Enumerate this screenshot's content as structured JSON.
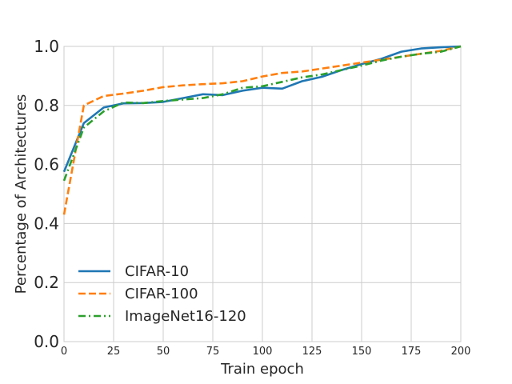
{
  "chart_data": {
    "type": "line",
    "title": "",
    "xlabel": "Train epoch",
    "ylabel": "Percentage of Architectures",
    "xlim": [
      0,
      200
    ],
    "ylim": [
      0.0,
      1.0
    ],
    "grid": true,
    "legend_position": "lower-left",
    "x_ticks": [
      0,
      25,
      50,
      75,
      100,
      125,
      150,
      175,
      200
    ],
    "y_ticks": [
      0.0,
      0.2,
      0.4,
      0.6,
      0.8,
      1.0
    ],
    "x_tick_labels": [
      "0",
      "25",
      "50",
      "75",
      "100",
      "125",
      "150",
      "175",
      "200"
    ],
    "y_tick_labels": [
      "0.0",
      "0.2",
      "0.4",
      "0.6",
      "0.8",
      "1.0"
    ],
    "x": [
      0,
      10,
      20,
      30,
      40,
      50,
      60,
      70,
      80,
      90,
      100,
      110,
      120,
      130,
      140,
      150,
      160,
      170,
      180,
      190,
      200
    ],
    "series": [
      {
        "name": "CIFAR-10",
        "color": "#1f77b4",
        "style": "solid",
        "values": [
          0.575,
          0.74,
          0.793,
          0.807,
          0.808,
          0.812,
          0.825,
          0.838,
          0.835,
          0.85,
          0.86,
          0.857,
          0.882,
          0.897,
          0.92,
          0.94,
          0.958,
          0.982,
          0.993,
          0.997,
          1.0
        ]
      },
      {
        "name": "CIFAR-100",
        "color": "#ff7f0e",
        "style": "dashed",
        "values": [
          0.43,
          0.8,
          0.832,
          0.84,
          0.85,
          0.862,
          0.868,
          0.872,
          0.875,
          0.882,
          0.898,
          0.91,
          0.915,
          0.925,
          0.935,
          0.945,
          0.955,
          0.965,
          0.975,
          0.985,
          1.0
        ]
      },
      {
        "name": "ImageNet16-120",
        "color": "#2ca02c",
        "style": "dashdot",
        "values": [
          0.545,
          0.725,
          0.78,
          0.81,
          0.808,
          0.815,
          0.82,
          0.825,
          0.838,
          0.86,
          0.865,
          0.88,
          0.895,
          0.905,
          0.92,
          0.935,
          0.952,
          0.965,
          0.975,
          0.982,
          1.0
        ]
      }
    ]
  }
}
